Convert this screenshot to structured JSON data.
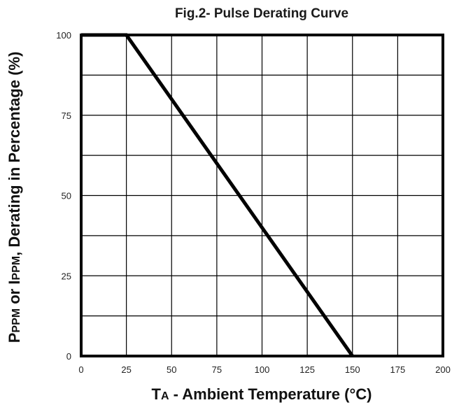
{
  "chart_data": {
    "type": "line",
    "title": "Fig.2- Pulse Derating Curve",
    "xlabel": {
      "lead": "T",
      "sub": "A",
      "rest": " - Ambient Temperature (°C)"
    },
    "ylabel": {
      "p": "P",
      "p_sub": "PPM",
      "or": " or ",
      "i": "I",
      "i_sub": "PPM",
      "rest": ", Derating in Percentage (%)"
    },
    "xlim": [
      0,
      200
    ],
    "ylim": [
      0,
      100
    ],
    "xticks": [
      "0",
      "25",
      "50",
      "75",
      "100",
      "125",
      "150",
      "175",
      "200"
    ],
    "yticks": [
      "0",
      "25",
      "50",
      "75",
      "100"
    ],
    "x_grid_step": 25,
    "y_grid_step": 12.5,
    "grid": true,
    "series": [
      {
        "x": [
          0,
          25,
          150
        ],
        "y": [
          100,
          100,
          0
        ]
      }
    ],
    "colors": {
      "line": "#000000",
      "grid": "#000000",
      "frame": "#000000"
    }
  }
}
